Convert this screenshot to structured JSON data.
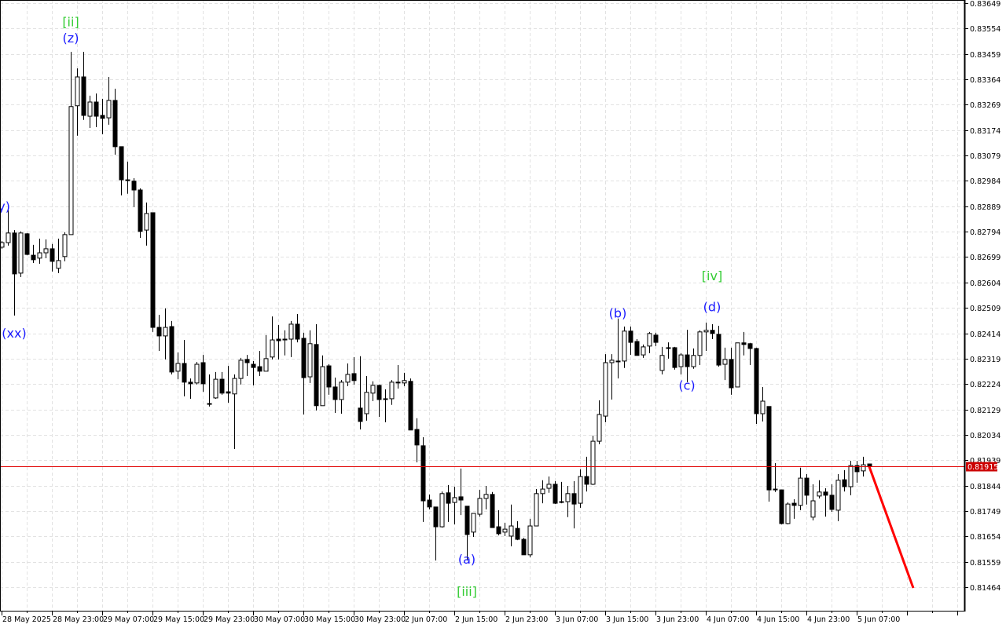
{
  "chart_data": {
    "type": "candlestick",
    "ylim": [
      0.81464,
      0.83649
    ],
    "grid": true,
    "y_ticks": [
      "0.83649",
      "0.83554",
      "0.83459",
      "0.83364",
      "0.83269",
      "0.83174",
      "0.83079",
      "0.82984",
      "0.82889",
      "0.82794",
      "0.82699",
      "0.82604",
      "0.82509",
      "0.82414",
      "0.82319",
      "0.82224",
      "0.82129",
      "0.82034",
      "0.81939",
      "0.81844",
      "0.81749",
      "0.81654",
      "0.81559",
      "0.81464"
    ],
    "x_ticks": [
      "28 May 2025",
      "28 May 23:00",
      "29 May 07:00",
      "29 May 15:00",
      "29 May 23:00",
      "30 May 07:00",
      "30 May 15:00",
      "30 May 23:00",
      "2 Jun 07:00",
      "2 Jun 15:00",
      "2 Jun 23:00",
      "3 Jun 07:00",
      "3 Jun 15:00",
      "3 Jun 23:00",
      "4 Jun 07:00",
      "4 Jun 15:00",
      "4 Jun 23:00",
      "5 Jun 07:00"
    ],
    "current_price": "0.81915",
    "current_price_value": 0.81915,
    "colors": {
      "bull_body": "#ffffff",
      "bear_body": "#000000",
      "price_line": "#e00000",
      "forecast": "#ff0000",
      "wave_minor": "#1a1aff",
      "wave_major": "#33cc33"
    },
    "forecast": {
      "start": 0.81915,
      "end": 0.81461,
      "bars_ahead": 7
    },
    "candles_ohlc": [
      [
        0.82736,
        0.82759,
        0.8273,
        0.82753
      ],
      [
        0.82753,
        0.82877,
        0.82742,
        0.82789
      ],
      [
        0.82789,
        0.828,
        0.8248,
        0.82636
      ],
      [
        0.82639,
        0.82795,
        0.82624,
        0.82789
      ],
      [
        0.82786,
        0.82789,
        0.82706,
        0.82709
      ],
      [
        0.82706,
        0.82745,
        0.82677,
        0.82689
      ],
      [
        0.82695,
        0.82768,
        0.82674,
        0.82715
      ],
      [
        0.82715,
        0.82765,
        0.82695,
        0.8273
      ],
      [
        0.8273,
        0.82748,
        0.82645,
        0.82683
      ],
      [
        0.82657,
        0.82768,
        0.82639,
        0.82686
      ],
      [
        0.82701,
        0.82792,
        0.82683,
        0.82783
      ],
      [
        0.82783,
        0.83467,
        0.82783,
        0.83262
      ],
      [
        0.83265,
        0.83405,
        0.83153,
        0.83373
      ],
      [
        0.83373,
        0.83467,
        0.83212,
        0.83229
      ],
      [
        0.83226,
        0.83303,
        0.83182,
        0.83279
      ],
      [
        0.83279,
        0.83311,
        0.83185,
        0.83226
      ],
      [
        0.83229,
        0.83291,
        0.83159,
        0.83218
      ],
      [
        0.8322,
        0.83373,
        0.83194,
        0.83285
      ],
      [
        0.83285,
        0.83329,
        0.83082,
        0.83112
      ],
      [
        0.83112,
        0.83112,
        0.8293,
        0.82988
      ],
      [
        0.82988,
        0.83056,
        0.82936,
        0.82985
      ],
      [
        0.82983,
        0.82994,
        0.82886,
        0.8295
      ],
      [
        0.8295,
        0.82956,
        0.82771,
        0.82795
      ],
      [
        0.828,
        0.82903,
        0.82742,
        0.82862
      ],
      [
        0.82865,
        0.82865,
        0.82419,
        0.82436
      ],
      [
        0.82436,
        0.82483,
        0.82348,
        0.82404
      ],
      [
        0.82404,
        0.82507,
        0.82316,
        0.82436
      ],
      [
        0.82439,
        0.8246,
        0.8226,
        0.82269
      ],
      [
        0.82272,
        0.82342,
        0.82242,
        0.82301
      ],
      [
        0.82301,
        0.82389,
        0.82178,
        0.82231
      ],
      [
        0.82231,
        0.82245,
        0.82169,
        0.82225
      ],
      [
        0.82228,
        0.82307,
        0.82222,
        0.82298
      ],
      [
        0.82304,
        0.82333,
        0.82195,
        0.82225
      ],
      [
        0.82151,
        0.8226,
        0.8214,
        0.82151
      ],
      [
        0.82172,
        0.82269,
        0.82169,
        0.82242
      ],
      [
        0.82242,
        0.82269,
        0.82184,
        0.8219
      ],
      [
        0.82195,
        0.82292,
        0.82154,
        0.8219
      ],
      [
        0.82187,
        0.8226,
        0.81981,
        0.82245
      ],
      [
        0.82245,
        0.82322,
        0.82222,
        0.82313
      ],
      [
        0.82316,
        0.82333,
        0.82254,
        0.82304
      ],
      [
        0.82298,
        0.8231,
        0.82219,
        0.82286
      ],
      [
        0.82289,
        0.82348,
        0.82254,
        0.82272
      ],
      [
        0.82272,
        0.82407,
        0.82272,
        0.82319
      ],
      [
        0.82325,
        0.82477,
        0.82316,
        0.82389
      ],
      [
        0.82392,
        0.82445,
        0.82316,
        0.82386
      ],
      [
        0.82392,
        0.82425,
        0.82331,
        0.82389
      ],
      [
        0.82392,
        0.8246,
        0.82325,
        0.82448
      ],
      [
        0.82448,
        0.82486,
        0.8238,
        0.82392
      ],
      [
        0.82395,
        0.82416,
        0.8211,
        0.82248
      ],
      [
        0.82251,
        0.82425,
        0.82228,
        0.82375
      ],
      [
        0.82372,
        0.82448,
        0.82125,
        0.82143
      ],
      [
        0.82143,
        0.82331,
        0.82143,
        0.82289
      ],
      [
        0.82292,
        0.82298,
        0.82184,
        0.82213
      ],
      [
        0.82213,
        0.82248,
        0.82116,
        0.82166
      ],
      [
        0.82166,
        0.82239,
        0.82113,
        0.82231
      ],
      [
        0.82231,
        0.82301,
        0.82216,
        0.8226
      ],
      [
        0.82263,
        0.82325,
        0.82222,
        0.82237
      ],
      [
        0.82134,
        0.82328,
        0.82054,
        0.82084
      ],
      [
        0.82113,
        0.82254,
        0.82087,
        0.82193
      ],
      [
        0.8219,
        0.82234,
        0.8216,
        0.82219
      ],
      [
        0.82219,
        0.82222,
        0.82101,
        0.82166
      ],
      [
        0.82169,
        0.82204,
        0.82081,
        0.82166
      ],
      [
        0.82169,
        0.82239,
        0.82146,
        0.82231
      ],
      [
        0.82231,
        0.82295,
        0.82207,
        0.82228
      ],
      [
        0.82228,
        0.82266,
        0.82216,
        0.82237
      ],
      [
        0.82234,
        0.82245,
        0.82052,
        0.82052
      ],
      [
        0.82054,
        0.82096,
        0.81931,
        0.81996
      ],
      [
        0.81993,
        0.82025,
        0.81708,
        0.81787
      ],
      [
        0.8179,
        0.81811,
        0.81755,
        0.81764
      ],
      [
        0.81764,
        0.81764,
        0.81564,
        0.8169
      ],
      [
        0.8169,
        0.81822,
        0.81687,
        0.81814
      ],
      [
        0.81817,
        0.81846,
        0.81708,
        0.81778
      ],
      [
        0.81781,
        0.8184,
        0.81699,
        0.81799
      ],
      [
        0.81802,
        0.81908,
        0.81734,
        0.8179
      ],
      [
        0.81767,
        0.81767,
        0.81564,
        0.81661
      ],
      [
        0.8167,
        0.8174,
        0.81652,
        0.8174
      ],
      [
        0.81737,
        0.81828,
        0.81728,
        0.81796
      ],
      [
        0.81796,
        0.81843,
        0.81755,
        0.81811
      ],
      [
        0.81811,
        0.8182,
        0.81687,
        0.81687
      ],
      [
        0.8169,
        0.81752,
        0.81658,
        0.81664
      ],
      [
        0.8167,
        0.81705,
        0.81655,
        0.81681
      ],
      [
        0.81655,
        0.81773,
        0.81617,
        0.81693
      ],
      [
        0.81684,
        0.81711,
        0.8164,
        0.81643
      ],
      [
        0.81643,
        0.81649,
        0.81585,
        0.81585
      ],
      [
        0.81585,
        0.8172,
        0.81576,
        0.81693
      ],
      [
        0.81693,
        0.81831,
        0.81693,
        0.81814
      ],
      [
        0.81814,
        0.81864,
        0.81778,
        0.81831
      ],
      [
        0.81834,
        0.81878,
        0.81817,
        0.81849
      ],
      [
        0.81849,
        0.81861,
        0.81775,
        0.81778
      ],
      [
        0.81784,
        0.81858,
        0.81778,
        0.81781
      ],
      [
        0.81784,
        0.81843,
        0.81726,
        0.81814
      ],
      [
        0.81814,
        0.81861,
        0.81684,
        0.81775
      ],
      [
        0.81778,
        0.81905,
        0.81761,
        0.81878
      ],
      [
        0.81878,
        0.81952,
        0.81822,
        0.81849
      ],
      [
        0.81849,
        0.82031,
        0.81846,
        0.8201
      ],
      [
        0.8201,
        0.82163,
        0.81999,
        0.8211
      ],
      [
        0.82104,
        0.82336,
        0.82081,
        0.82304
      ],
      [
        0.82304,
        0.82336,
        0.82166,
        0.82313
      ],
      [
        0.8231,
        0.82469,
        0.82245,
        0.8231
      ],
      [
        0.8231,
        0.82439,
        0.82284,
        0.82422
      ],
      [
        0.82422,
        0.82439,
        0.82333,
        0.8238
      ],
      [
        0.82383,
        0.82392,
        0.82331,
        0.82331
      ],
      [
        0.82333,
        0.82372,
        0.82322,
        0.82363
      ],
      [
        0.82366,
        0.82419,
        0.82339,
        0.82413
      ],
      [
        0.82407,
        0.82416,
        0.82366,
        0.8238
      ],
      [
        0.82275,
        0.82363,
        0.8226,
        0.82331
      ],
      [
        0.8236,
        0.8238,
        0.82319,
        0.8236
      ],
      [
        0.8236,
        0.82363,
        0.82278,
        0.82286
      ],
      [
        0.82289,
        0.82339,
        0.8226,
        0.82333
      ],
      [
        0.82333,
        0.82427,
        0.82231,
        0.82289
      ],
      [
        0.82289,
        0.82357,
        0.82281,
        0.82331
      ],
      [
        0.82331,
        0.82425,
        0.82295,
        0.82419
      ],
      [
        0.82419,
        0.82454,
        0.82348,
        0.82425
      ],
      [
        0.82425,
        0.82448,
        0.82392,
        0.82413
      ],
      [
        0.8241,
        0.82442,
        0.82289,
        0.82295
      ],
      [
        0.82298,
        0.8236,
        0.82239,
        0.82316
      ],
      [
        0.82316,
        0.8236,
        0.82184,
        0.8221
      ],
      [
        0.82213,
        0.82378,
        0.82213,
        0.82378
      ],
      [
        0.82378,
        0.82419,
        0.82331,
        0.82372
      ],
      [
        0.82375,
        0.82378,
        0.82295,
        0.82357
      ],
      [
        0.82357,
        0.8236,
        0.82075,
        0.82113
      ],
      [
        0.82113,
        0.82213,
        0.82084,
        0.8216
      ],
      [
        0.8214,
        0.8214,
        0.81784,
        0.81828
      ],
      [
        0.81831,
        0.81928,
        0.8182,
        0.81828
      ],
      [
        0.81828,
        0.81828,
        0.81699,
        0.81702
      ],
      [
        0.81702,
        0.81781,
        0.81699,
        0.81775
      ],
      [
        0.81778,
        0.81793,
        0.8172,
        0.8177
      ],
      [
        0.8177,
        0.81911,
        0.81752,
        0.81872
      ],
      [
        0.81872,
        0.81887,
        0.81773,
        0.81808
      ],
      [
        0.81726,
        0.81849,
        0.81714,
        0.81787
      ],
      [
        0.81805,
        0.81864,
        0.81796,
        0.8182
      ],
      [
        0.8182,
        0.81834,
        0.81728,
        0.81808
      ],
      [
        0.81808,
        0.81849,
        0.81746,
        0.81755
      ],
      [
        0.81752,
        0.81887,
        0.81711,
        0.81864
      ],
      [
        0.81866,
        0.81902,
        0.81822,
        0.8184
      ],
      [
        0.8184,
        0.81937,
        0.81808,
        0.81919
      ],
      [
        0.81919,
        0.81937,
        0.81855,
        0.81896
      ],
      [
        0.81899,
        0.81952,
        0.81878,
        0.81922
      ],
      [
        0.81925,
        0.81925,
        0.81915,
        0.81915
      ]
    ],
    "annotations": [
      {
        "text": "[ii]",
        "bar": 11,
        "price": 0.8358,
        "level": "major"
      },
      {
        "text": "(z)",
        "bar": 11,
        "price": 0.8352,
        "level": "minor"
      },
      {
        "text": "(y)",
        "bar": 0,
        "price": 0.8289,
        "level": "minor"
      },
      {
        "text": "(xx)",
        "bar": 2,
        "price": 0.82415,
        "level": "minor"
      },
      {
        "text": "(a)",
        "bar": 74,
        "price": 0.8157,
        "level": "minor"
      },
      {
        "text": "[iii]",
        "bar": 74,
        "price": 0.8145,
        "level": "major"
      },
      {
        "text": "(b)",
        "bar": 98,
        "price": 0.8249,
        "level": "minor"
      },
      {
        "text": "(c)",
        "bar": 109,
        "price": 0.8222,
        "level": "minor"
      },
      {
        "text": "(d)",
        "bar": 113,
        "price": 0.82514,
        "level": "minor"
      },
      {
        "text": "[iv]",
        "bar": 113,
        "price": 0.8263,
        "level": "major"
      }
    ]
  }
}
